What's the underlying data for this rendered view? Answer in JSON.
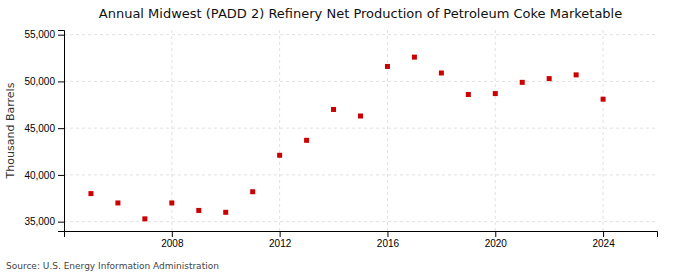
{
  "chart_data": {
    "type": "scatter",
    "title": "Annual Midwest (PADD 2) Refinery Net Production of Petroleum Coke Marketable",
    "ylabel": "Thousand Barrels",
    "annotations": [
      "Source: U.S. Energy Information Administration"
    ],
    "x": [
      2005,
      2006,
      2007,
      2008,
      2009,
      2010,
      2011,
      2012,
      2013,
      2014,
      2015,
      2016,
      2017,
      2018,
      2019,
      2020,
      2021,
      2022,
      2023,
      2024
    ],
    "values": [
      38000,
      37000,
      35300,
      37000,
      36200,
      36000,
      38200,
      42100,
      43700,
      47000,
      46300,
      51600,
      52600,
      50900,
      48600,
      48700,
      49900,
      50300,
      50700,
      48100
    ],
    "color": "#cc0000",
    "marker": "square",
    "xlim": [
      2004.0,
      2026.0
    ],
    "xticks": [
      2008,
      2012,
      2016,
      2020,
      2024
    ],
    "ylim": [
      34000,
      55500
    ],
    "yticks": [
      {
        "value": 35000,
        "label": "35,000"
      },
      {
        "value": 40000,
        "label": "40,000"
      },
      {
        "value": 45000,
        "label": "45,000"
      },
      {
        "value": 50000,
        "label": "50,000"
      },
      {
        "value": 55000,
        "label": "55,000"
      }
    ],
    "grid": true
  }
}
